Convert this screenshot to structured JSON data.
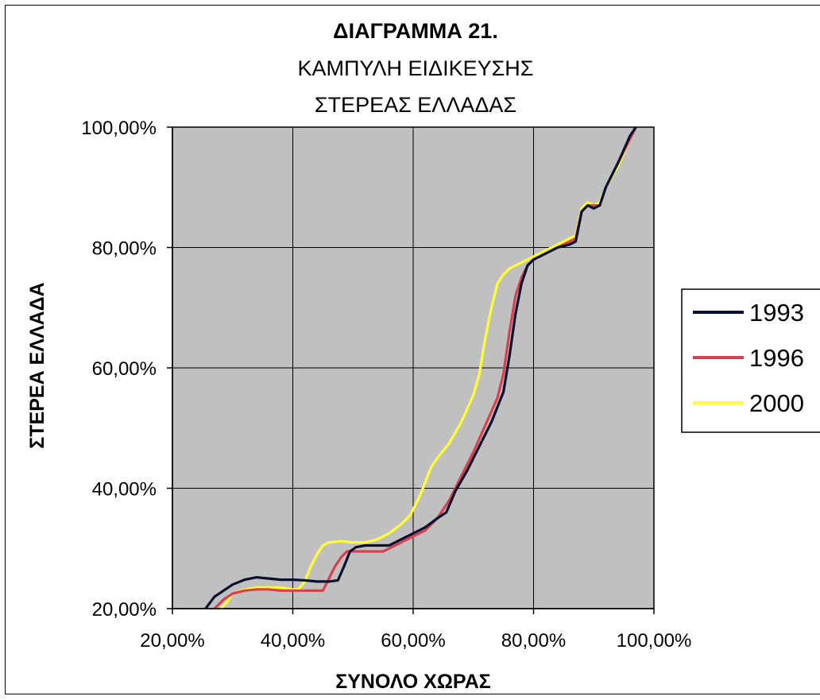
{
  "chart_data": {
    "type": "line",
    "title": "ΔΙΑΓΡΑΜΜΑ 21.",
    "subtitle_lines": [
      "ΚΑΜΠΥΛΗ ΕΙΔΙΚΕΥΣΗΣ",
      "ΣΤΕΡΕΑΣ ΕΛΛΑΔΑΣ"
    ],
    "xlabel": "ΣΥΝΟΛΟ ΧΩΡΑΣ",
    "ylabel": "ΣΤΕΡΕΑ ΕΛΛΑΔΑ",
    "xlim": [
      20,
      100
    ],
    "ylim": [
      20,
      100
    ],
    "x_ticks": [
      20,
      40,
      60,
      80,
      100
    ],
    "y_ticks": [
      20,
      40,
      60,
      80,
      100
    ],
    "x_tick_labels": [
      "20,00%",
      "40,00%",
      "60,00%",
      "80,00%",
      "100,00%"
    ],
    "y_tick_labels": [
      "20,00%",
      "40,00%",
      "60,00%",
      "80,00%",
      "100,00%"
    ],
    "grid": true,
    "plot_background": "#c0c0c0",
    "legend_position": "right",
    "series": [
      {
        "name": "1993",
        "color": "#0a1030",
        "points": [
          [
            25.5,
            20
          ],
          [
            27,
            22
          ],
          [
            28.5,
            23
          ],
          [
            30,
            24
          ],
          [
            32,
            24.8
          ],
          [
            34,
            25.2
          ],
          [
            36,
            25
          ],
          [
            38,
            24.8
          ],
          [
            40,
            24.8
          ],
          [
            42,
            24.7
          ],
          [
            44,
            24.5
          ],
          [
            46,
            24.5
          ],
          [
            47.5,
            24.7
          ],
          [
            48.5,
            27
          ],
          [
            49.5,
            29.5
          ],
          [
            50.5,
            30.2
          ],
          [
            52,
            30.5
          ],
          [
            54,
            30.5
          ],
          [
            56,
            30.5
          ],
          [
            58,
            31.5
          ],
          [
            60,
            32.5
          ],
          [
            62,
            33.5
          ],
          [
            64,
            35
          ],
          [
            65.5,
            36
          ],
          [
            67,
            39.5
          ],
          [
            69,
            43
          ],
          [
            71,
            47
          ],
          [
            73,
            51
          ],
          [
            75,
            56
          ],
          [
            76,
            62
          ],
          [
            77,
            69
          ],
          [
            78,
            74
          ],
          [
            79,
            77
          ],
          [
            80,
            78
          ],
          [
            82,
            79
          ],
          [
            84,
            80
          ],
          [
            86,
            80.5
          ],
          [
            87,
            81
          ],
          [
            88,
            86
          ],
          [
            89,
            87
          ],
          [
            90,
            86.5
          ],
          [
            91,
            87
          ],
          [
            92,
            90
          ],
          [
            94,
            94
          ],
          [
            96,
            98.5
          ],
          [
            97,
            100
          ]
        ]
      },
      {
        "name": "1996",
        "color": "#d84050",
        "points": [
          [
            27,
            20
          ],
          [
            28.5,
            21.5
          ],
          [
            30,
            22.5
          ],
          [
            32,
            23
          ],
          [
            34,
            23.2
          ],
          [
            36,
            23.2
          ],
          [
            38,
            23
          ],
          [
            40,
            23
          ],
          [
            42,
            23
          ],
          [
            44,
            23
          ],
          [
            45,
            23
          ],
          [
            46,
            25
          ],
          [
            47,
            27
          ],
          [
            48,
            28.5
          ],
          [
            49,
            29.5
          ],
          [
            50,
            29.5
          ],
          [
            52,
            29.5
          ],
          [
            54,
            29.5
          ],
          [
            55,
            29.5
          ],
          [
            56,
            30
          ],
          [
            58,
            31
          ],
          [
            60,
            32
          ],
          [
            62,
            33
          ],
          [
            64,
            35
          ],
          [
            66,
            38
          ],
          [
            68,
            42
          ],
          [
            70,
            46
          ],
          [
            72,
            50.5
          ],
          [
            74,
            55
          ],
          [
            75,
            59
          ],
          [
            76,
            66
          ],
          [
            77,
            72
          ],
          [
            78,
            75
          ],
          [
            79,
            77
          ],
          [
            80,
            78
          ],
          [
            82,
            79
          ],
          [
            84,
            80
          ],
          [
            86,
            81
          ],
          [
            87,
            81.5
          ],
          [
            88,
            86
          ],
          [
            89,
            87
          ],
          [
            90,
            87
          ],
          [
            91,
            87
          ],
          [
            92,
            90
          ],
          [
            94,
            94
          ],
          [
            96,
            98
          ],
          [
            97,
            100
          ]
        ]
      },
      {
        "name": "2000",
        "color": "#ffff33",
        "points": [
          [
            28,
            20
          ],
          [
            29,
            21
          ],
          [
            30,
            22.5
          ],
          [
            32,
            23.2
          ],
          [
            34,
            23.5
          ],
          [
            36,
            23.5
          ],
          [
            38,
            23.5
          ],
          [
            40,
            23.2
          ],
          [
            41,
            23.3
          ],
          [
            42,
            24.5
          ],
          [
            43,
            27
          ],
          [
            44,
            29
          ],
          [
            45,
            30.5
          ],
          [
            46,
            31
          ],
          [
            48,
            31.2
          ],
          [
            50,
            31
          ],
          [
            52,
            31
          ],
          [
            54,
            31.5
          ],
          [
            56,
            32.5
          ],
          [
            58,
            34
          ],
          [
            59.5,
            35.5
          ],
          [
            61,
            38.5
          ],
          [
            62,
            41
          ],
          [
            63,
            43.5
          ],
          [
            64,
            45
          ],
          [
            66,
            47.5
          ],
          [
            68,
            51
          ],
          [
            70,
            55.5
          ],
          [
            71,
            59
          ],
          [
            72,
            65
          ],
          [
            73,
            70
          ],
          [
            74,
            74
          ],
          [
            75,
            75.5
          ],
          [
            76,
            76.5
          ],
          [
            78,
            77.5
          ],
          [
            80,
            78.5
          ],
          [
            82,
            79.5
          ],
          [
            84,
            80.5
          ],
          [
            86,
            81.5
          ],
          [
            87,
            82
          ],
          [
            88,
            86.5
          ],
          [
            89,
            87.5
          ],
          [
            90,
            87
          ],
          [
            91,
            87.5
          ],
          [
            92,
            90
          ],
          [
            94,
            93.5
          ],
          [
            96,
            98
          ],
          [
            97,
            100
          ]
        ]
      }
    ]
  }
}
